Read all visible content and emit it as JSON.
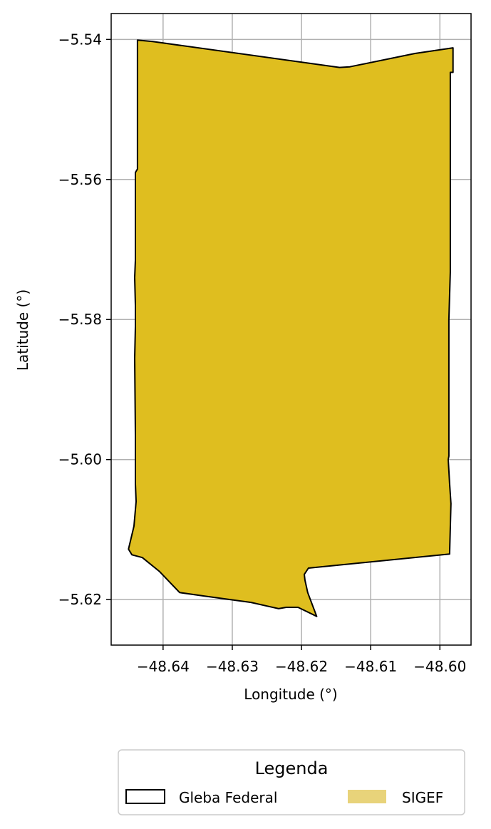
{
  "chart_data": {
    "type": "map",
    "xlabel": "Longitude (°)",
    "ylabel": "Latitude (°)",
    "xlim": [
      -48.6475,
      -48.5955
    ],
    "ylim": [
      -5.6265,
      -5.5363
    ],
    "xticks": [
      -48.64,
      -48.63,
      -48.62,
      -48.61,
      -48.6
    ],
    "xtick_labels": [
      "−48.64",
      "−48.63",
      "−48.62",
      "−48.61",
      "−48.60"
    ],
    "yticks": [
      -5.54,
      -5.56,
      -5.58,
      -5.6,
      -5.62
    ],
    "ytick_labels": [
      "−5.54",
      "−5.56",
      "−5.58",
      "−5.60",
      "−5.62"
    ],
    "grid": true,
    "legend": {
      "title": "Legenda",
      "placement": "bottom-center",
      "entries": [
        {
          "label": "Gleba Federal",
          "style": "outline",
          "edge_color": "#000000"
        },
        {
          "label": "SIGEF",
          "style": "fill",
          "fill_color": "#e8d37a"
        }
      ]
    },
    "polygon": {
      "name": "Gleba Federal",
      "fill_color": "#dfbe1f",
      "edge_color": "#000000",
      "coordinates": [
        [
          -48.6437,
          -5.5401
        ],
        [
          -48.6415,
          -5.5403
        ],
        [
          -48.6145,
          -5.544
        ],
        [
          -48.613,
          -5.5439
        ],
        [
          -48.6036,
          -5.542
        ],
        [
          -48.5981,
          -5.5412
        ],
        [
          -48.5981,
          -5.5447
        ],
        [
          -48.5985,
          -5.5447
        ],
        [
          -48.5985,
          -5.5732
        ],
        [
          -48.5987,
          -5.58
        ],
        [
          -48.5987,
          -5.5995
        ],
        [
          -48.5988,
          -5.6
        ],
        [
          -48.5986,
          -5.6034
        ],
        [
          -48.5984,
          -5.6063
        ],
        [
          -48.5986,
          -5.6135
        ],
        [
          -48.619,
          -5.6155
        ],
        [
          -48.6196,
          -5.6164
        ],
        [
          -48.6195,
          -5.6172
        ],
        [
          -48.6191,
          -5.619
        ],
        [
          -48.6178,
          -5.6224
        ],
        [
          -48.6205,
          -5.6211
        ],
        [
          -48.6222,
          -5.6211
        ],
        [
          -48.6233,
          -5.6213
        ],
        [
          -48.6273,
          -5.6204
        ],
        [
          -48.634,
          -5.6195
        ],
        [
          -48.6376,
          -5.619
        ],
        [
          -48.6405,
          -5.616
        ],
        [
          -48.643,
          -5.614
        ],
        [
          -48.6445,
          -5.6136
        ],
        [
          -48.645,
          -5.6128
        ],
        [
          -48.6442,
          -5.6095
        ],
        [
          -48.6439,
          -5.606
        ],
        [
          -48.644,
          -5.6035
        ],
        [
          -48.644,
          -5.5965
        ],
        [
          -48.6441,
          -5.5855
        ],
        [
          -48.644,
          -5.581
        ],
        [
          -48.644,
          -5.578
        ],
        [
          -48.6441,
          -5.574
        ],
        [
          -48.644,
          -5.5715
        ],
        [
          -48.644,
          -5.5625
        ],
        [
          -48.644,
          -5.559
        ],
        [
          -48.6437,
          -5.5585
        ],
        [
          -48.6437,
          -5.5507
        ],
        [
          -48.6437,
          -5.5401
        ]
      ]
    }
  }
}
